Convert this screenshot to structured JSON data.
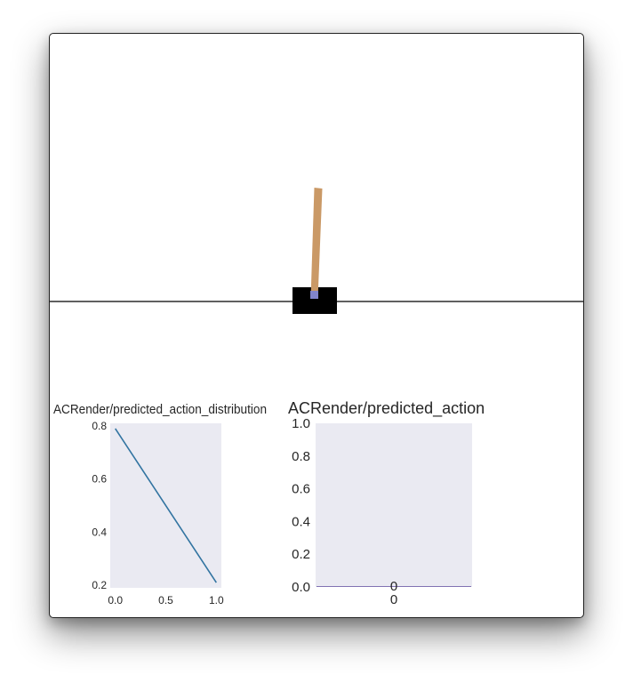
{
  "scene": {
    "colors": {
      "track": "#000000",
      "cart": "#000000",
      "pole": "#ca9966",
      "axle": "#8184cb"
    }
  },
  "chart_data": [
    {
      "type": "line",
      "title": "ACRender/predicted_action_distribution",
      "xlabel": "",
      "ylabel": "",
      "x": [
        0.0,
        1.0
      ],
      "series": [
        {
          "values": [
            0.79,
            0.21
          ]
        }
      ],
      "xlim": [
        -0.05,
        1.05
      ],
      "ylim": [
        0.19,
        0.81
      ],
      "xticks": [
        "0.0",
        "0.5",
        "1.0"
      ],
      "yticks": [
        "0.2",
        "0.4",
        "0.6",
        "0.8"
      ],
      "grid": false,
      "background": "#eaeaf2",
      "line_color": "#3274a1"
    },
    {
      "type": "bar",
      "title": "ACRender/predicted_action",
      "xlabel": "",
      "ylabel": "",
      "categories": [
        "0"
      ],
      "values": [
        0
      ],
      "data_labels": [
        "0"
      ],
      "ylim": [
        0.0,
        1.0
      ],
      "yticks": [
        "0.0",
        "0.2",
        "0.4",
        "0.6",
        "0.8",
        "1.0"
      ],
      "grid": false,
      "background": "#eaeaf2",
      "bar_color": "#8172b3"
    }
  ]
}
